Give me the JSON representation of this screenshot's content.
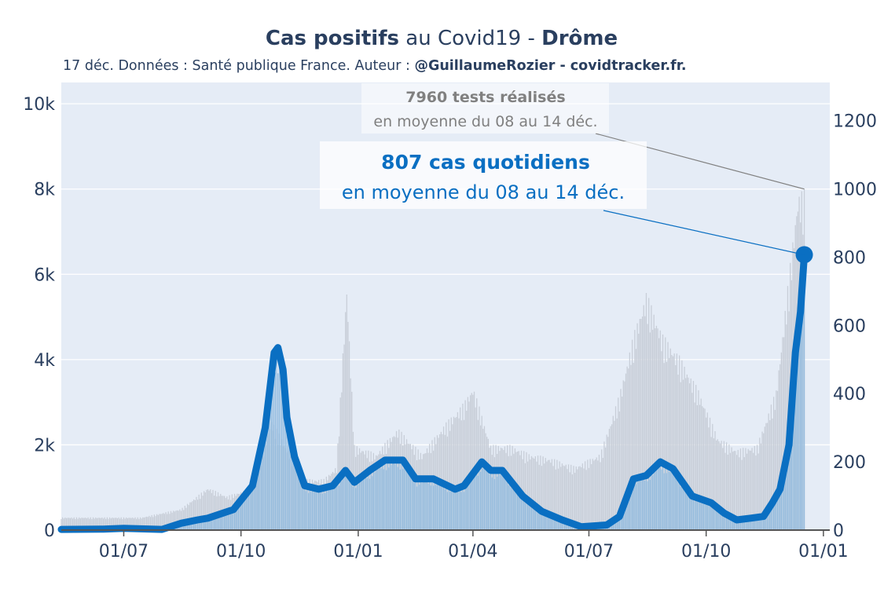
{
  "title": {
    "part1_bold": "Cas positifs",
    "part2": " au Covid19 - ",
    "part3_bold": "Drôme"
  },
  "subtitle": {
    "part1": "17 déc. Données : Santé publique France. Auteur : ",
    "part2_bold": "@GuillaumeRozier - covidtracker.fr."
  },
  "annotations": {
    "tests_line1": "7960 tests réalisés",
    "tests_line2": "en moyenne du 08 au 14 déc.",
    "cases_line1": "807 cas quotidiens",
    "cases_line2": "en moyenne du 08 au 14 déc."
  },
  "colors": {
    "plot_bg": "#e5ecf6",
    "cases_line": "#0a6fc2",
    "cases_bars": "#8db8de",
    "tests_bars": "#c8ced8",
    "annotation_gray": "#808080",
    "text_dark": "#2a3f5f"
  },
  "chart_data": {
    "type": "line",
    "x_ticks": [
      "01/07",
      "01/10",
      "01/01",
      "01/04",
      "01/07",
      "01/10",
      "01/01"
    ],
    "y_left": {
      "ticks": [
        "0",
        "2k",
        "4k",
        "6k",
        "8k",
        "10k"
      ],
      "range": [
        0,
        10500
      ],
      "label": ""
    },
    "y_right": {
      "ticks": [
        "0",
        "200",
        "400",
        "600",
        "800",
        "1000",
        "1200"
      ],
      "range": [
        0,
        1312
      ],
      "label": ""
    },
    "grid": true,
    "series": [
      {
        "axis": "right",
        "style": "line+bars",
        "points": [
          [
            "2020-05-13",
            2
          ],
          [
            "2020-06-15",
            3
          ],
          [
            "2020-07-01",
            5
          ],
          [
            "2020-07-31",
            2
          ],
          [
            "2020-08-15",
            20
          ],
          [
            "2020-08-28",
            30
          ],
          [
            "2020-09-05",
            35
          ],
          [
            "2020-09-25",
            60
          ],
          [
            "2020-10-10",
            130
          ],
          [
            "2020-10-20",
            300
          ],
          [
            "2020-10-27",
            520
          ],
          [
            "2020-10-30",
            535
          ],
          [
            "2020-11-03",
            470
          ],
          [
            "2020-11-06",
            330
          ],
          [
            "2020-11-12",
            215
          ],
          [
            "2020-11-20",
            130
          ],
          [
            "2020-12-01",
            120
          ],
          [
            "2020-12-12",
            130
          ],
          [
            "2020-12-22",
            175
          ],
          [
            "2020-12-29",
            140
          ],
          [
            "2021-01-10",
            175
          ],
          [
            "2021-01-22",
            205
          ],
          [
            "2021-02-05",
            205
          ],
          [
            "2021-02-15",
            150
          ],
          [
            "2021-03-01",
            150
          ],
          [
            "2021-03-18",
            120
          ],
          [
            "2021-03-25",
            130
          ],
          [
            "2021-04-08",
            200
          ],
          [
            "2021-04-15",
            175
          ],
          [
            "2021-04-24",
            175
          ],
          [
            "2021-05-10",
            100
          ],
          [
            "2021-05-25",
            55
          ],
          [
            "2021-06-10",
            30
          ],
          [
            "2021-06-25",
            10
          ],
          [
            "2021-07-15",
            15
          ],
          [
            "2021-07-25",
            40
          ],
          [
            "2021-08-05",
            150
          ],
          [
            "2021-08-15",
            160
          ],
          [
            "2021-08-26",
            200
          ],
          [
            "2021-09-05",
            180
          ],
          [
            "2021-09-20",
            100
          ],
          [
            "2021-10-05",
            80
          ],
          [
            "2021-10-15",
            50
          ],
          [
            "2021-10-25",
            30
          ],
          [
            "2021-11-05",
            35
          ],
          [
            "2021-11-15",
            40
          ],
          [
            "2021-11-22",
            80
          ],
          [
            "2021-11-28",
            120
          ],
          [
            "2021-12-05",
            250
          ],
          [
            "2021-12-10",
            520
          ],
          [
            "2021-12-14",
            640
          ],
          [
            "2021-12-17",
            807
          ]
        ]
      },
      {
        "axis": "left",
        "style": "bars",
        "points": [
          [
            "2020-05-13",
            300
          ],
          [
            "2020-06-15",
            300
          ],
          [
            "2020-07-15",
            300
          ],
          [
            "2020-08-15",
            500
          ],
          [
            "2020-09-05",
            1000
          ],
          [
            "2020-09-20",
            800
          ],
          [
            "2020-10-10",
            1000
          ],
          [
            "2020-10-25",
            2600
          ],
          [
            "2020-11-05",
            2000
          ],
          [
            "2020-11-20",
            1200
          ],
          [
            "2020-12-05",
            1200
          ],
          [
            "2020-12-15",
            1500
          ],
          [
            "2020-12-23",
            5800
          ],
          [
            "2020-12-29",
            2000
          ],
          [
            "2021-01-15",
            1800
          ],
          [
            "2021-02-01",
            2400
          ],
          [
            "2021-02-20",
            1800
          ],
          [
            "2021-03-10",
            2500
          ],
          [
            "2021-03-25",
            3000
          ],
          [
            "2021-04-01",
            3400
          ],
          [
            "2021-04-15",
            2000
          ],
          [
            "2021-05-01",
            2000
          ],
          [
            "2021-05-15",
            1800
          ],
          [
            "2021-06-01",
            1700
          ],
          [
            "2021-06-20",
            1500
          ],
          [
            "2021-07-10",
            1800
          ],
          [
            "2021-07-25",
            3200
          ],
          [
            "2021-08-05",
            4600
          ],
          [
            "2021-08-15",
            5600
          ],
          [
            "2021-08-28",
            4600
          ],
          [
            "2021-09-10",
            4100
          ],
          [
            "2021-09-25",
            3300
          ],
          [
            "2021-10-10",
            2200
          ],
          [
            "2021-10-25",
            1900
          ],
          [
            "2021-11-10",
            2000
          ],
          [
            "2021-11-25",
            3300
          ],
          [
            "2021-12-05",
            6000
          ],
          [
            "2021-12-12",
            7960
          ],
          [
            "2021-12-17",
            8000
          ]
        ]
      }
    ]
  }
}
